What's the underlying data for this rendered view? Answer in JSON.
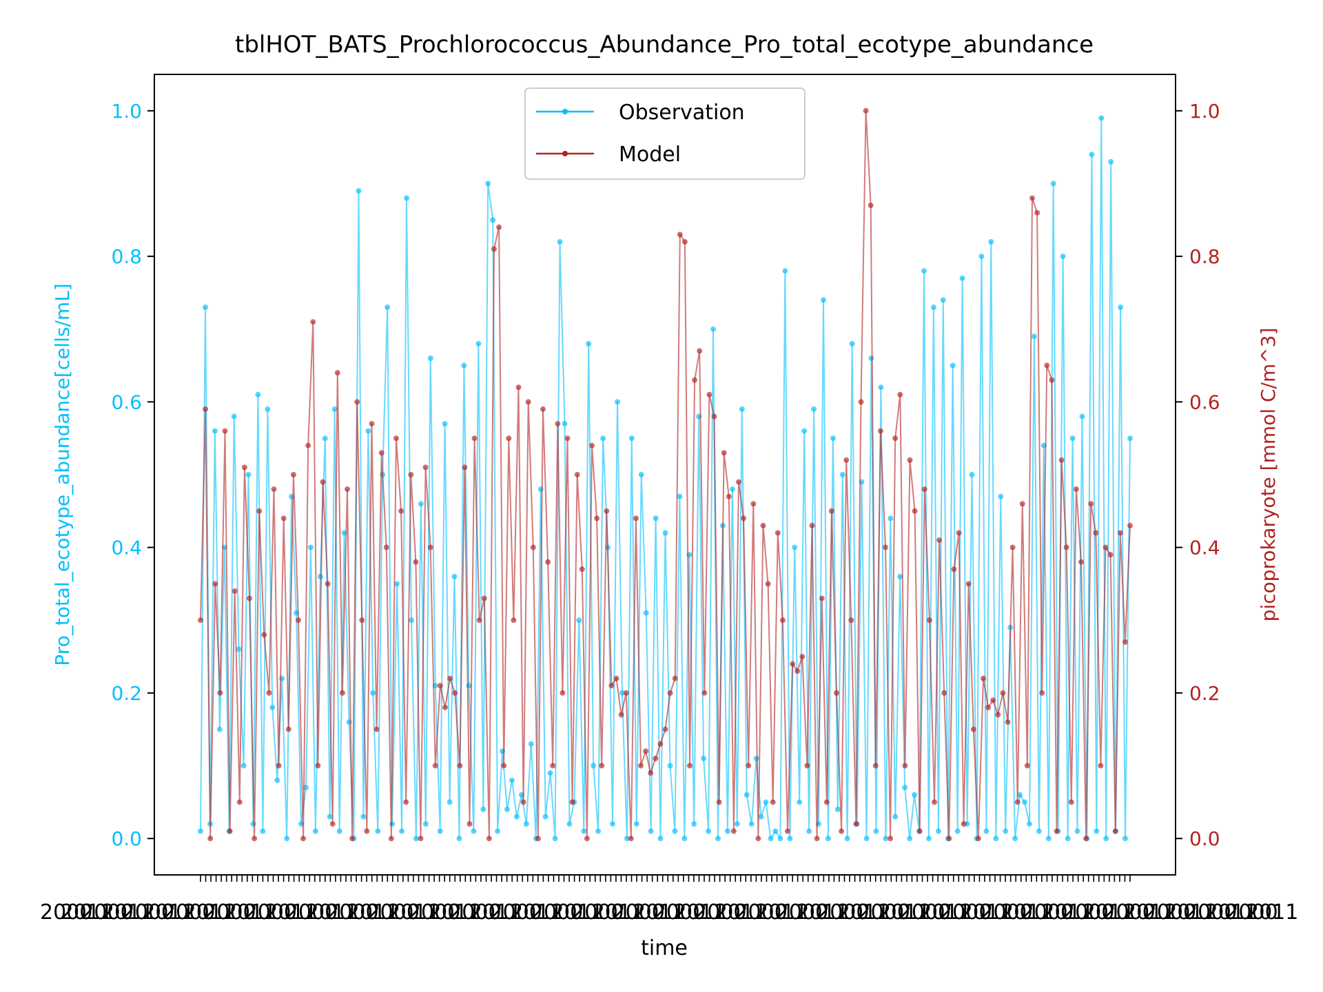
{
  "chart_data": {
    "type": "line",
    "title": "tblHOT_BATS_Prochlorococcus_Abundance_Pro_total_ecotype_abundance",
    "xlabel": "time",
    "ylabel_left": "Pro_total_ecotype_abundance[cells/mL]",
    "ylabel_right": "picoprokaryote [mmol C/m^3]",
    "ylim_left": [
      -0.05,
      1.05
    ],
    "ylim_right": [
      -0.05,
      1.05
    ],
    "yticks_left": [
      "0.0",
      "0.2",
      "0.4",
      "0.6",
      "0.8",
      "1.0"
    ],
    "yticks_right": [
      "0.0",
      "0.2",
      "0.4",
      "0.6",
      "0.8",
      "1.0"
    ],
    "x_tick_count": 180,
    "legend": {
      "placement": "upper center"
    },
    "grid": false,
    "series": [
      {
        "name": "Observation",
        "axis": "left",
        "color": "#00bfff",
        "values": [
          0.01,
          0.73,
          0.02,
          0.56,
          0.15,
          0.4,
          0.01,
          0.58,
          0.26,
          0.1,
          0.5,
          0.02,
          0.61,
          0.01,
          0.59,
          0.18,
          0.08,
          0.22,
          0.0,
          0.47,
          0.31,
          0.02,
          0.07,
          0.4,
          0.01,
          0.36,
          0.55,
          0.03,
          0.59,
          0.01,
          0.42,
          0.16,
          0.0,
          0.89,
          0.03,
          0.56,
          0.2,
          0.01,
          0.5,
          0.73,
          0.02,
          0.35,
          0.01,
          0.88,
          0.3,
          0.0,
          0.46,
          0.02,
          0.66,
          0.21,
          0.01,
          0.57,
          0.05,
          0.36,
          0.0,
          0.65,
          0.21,
          0.01,
          0.68,
          0.04,
          0.9,
          0.85,
          0.01,
          0.12,
          0.04,
          0.08,
          0.03,
          0.06,
          0.02,
          0.13,
          0.0,
          0.48,
          0.03,
          0.09,
          0.0,
          0.82,
          0.57,
          0.02,
          0.05,
          0.3,
          0.01,
          0.68,
          0.1,
          0.01,
          0.55,
          0.4,
          0.02,
          0.6,
          0.2,
          0.0,
          0.55,
          0.02,
          0.5,
          0.31,
          0.01,
          0.44,
          0.0,
          0.42,
          0.1,
          0.01,
          0.47,
          0.0,
          0.39,
          0.02,
          0.58,
          0.11,
          0.01,
          0.7,
          0.0,
          0.43,
          0.01,
          0.48,
          0.02,
          0.59,
          0.06,
          0.02,
          0.11,
          0.03,
          0.05,
          0.0,
          0.01,
          0.0,
          0.78,
          0.0,
          0.4,
          0.05,
          0.56,
          0.01,
          0.59,
          0.02,
          0.74,
          0.0,
          0.55,
          0.04,
          0.5,
          0.0,
          0.68,
          0.02,
          0.49,
          0.0,
          0.66,
          0.01,
          0.62,
          0.0,
          0.44,
          0.03,
          0.36,
          0.07,
          0.0,
          0.06,
          0.01,
          0.78,
          0.0,
          0.73,
          0.01,
          0.74,
          0.0,
          0.65,
          0.01,
          0.77,
          0.02,
          0.5,
          0.0,
          0.8,
          0.01,
          0.82,
          0.0,
          0.47,
          0.01,
          0.29,
          0.0,
          0.06,
          0.05,
          0.02,
          0.69,
          0.01,
          0.54,
          0.0,
          0.9,
          0.01,
          0.8,
          0.0,
          0.55,
          0.01,
          0.58,
          0.0,
          0.94,
          0.01,
          0.99,
          0.0,
          0.93,
          0.01,
          0.73,
          0.0,
          0.55
        ]
      },
      {
        "name": "Model",
        "axis": "right",
        "color": "#b22222",
        "values": [
          0.3,
          0.59,
          0.0,
          0.35,
          0.2,
          0.56,
          0.01,
          0.34,
          0.05,
          0.51,
          0.33,
          0.0,
          0.45,
          0.28,
          0.2,
          0.48,
          0.1,
          0.44,
          0.15,
          0.5,
          0.3,
          0.0,
          0.54,
          0.71,
          0.1,
          0.49,
          0.35,
          0.02,
          0.64,
          0.2,
          0.48,
          0.0,
          0.6,
          0.3,
          0.01,
          0.57,
          0.15,
          0.53,
          0.4,
          0.0,
          0.55,
          0.45,
          0.05,
          0.5,
          0.38,
          0.0,
          0.51,
          0.4,
          0.1,
          0.21,
          0.18,
          0.22,
          0.2,
          0.1,
          0.51,
          0.02,
          0.55,
          0.3,
          0.33,
          0.0,
          0.81,
          0.84,
          0.1,
          0.55,
          0.3,
          0.62,
          0.05,
          0.6,
          0.4,
          0.0,
          0.59,
          0.38,
          0.1,
          0.57,
          0.2,
          0.55,
          0.05,
          0.5,
          0.37,
          0.0,
          0.54,
          0.44,
          0.1,
          0.45,
          0.21,
          0.22,
          0.17,
          0.2,
          0.0,
          0.44,
          0.1,
          0.12,
          0.09,
          0.11,
          0.13,
          0.15,
          0.2,
          0.22,
          0.83,
          0.82,
          0.1,
          0.63,
          0.67,
          0.2,
          0.61,
          0.58,
          0.05,
          0.53,
          0.47,
          0.01,
          0.49,
          0.44,
          0.1,
          0.46,
          0.0,
          0.43,
          0.35,
          0.05,
          0.42,
          0.3,
          0.01,
          0.24,
          0.23,
          0.25,
          0.1,
          0.43,
          0.0,
          0.33,
          0.05,
          0.45,
          0.2,
          0.01,
          0.52,
          0.3,
          0.02,
          0.6,
          1.0,
          0.87,
          0.1,
          0.56,
          0.4,
          0.0,
          0.55,
          0.61,
          0.1,
          0.52,
          0.45,
          0.01,
          0.48,
          0.3,
          0.05,
          0.41,
          0.2,
          0.0,
          0.37,
          0.42,
          0.02,
          0.35,
          0.15,
          0.0,
          0.22,
          0.18,
          0.19,
          0.17,
          0.2,
          0.16,
          0.4,
          0.05,
          0.46,
          0.1,
          0.88,
          0.86,
          0.2,
          0.65,
          0.63,
          0.01,
          0.52,
          0.4,
          0.05,
          0.48,
          0.38,
          0.0,
          0.46,
          0.42,
          0.1,
          0.4,
          0.39,
          0.01,
          0.42,
          0.27,
          0.43
        ]
      }
    ]
  }
}
